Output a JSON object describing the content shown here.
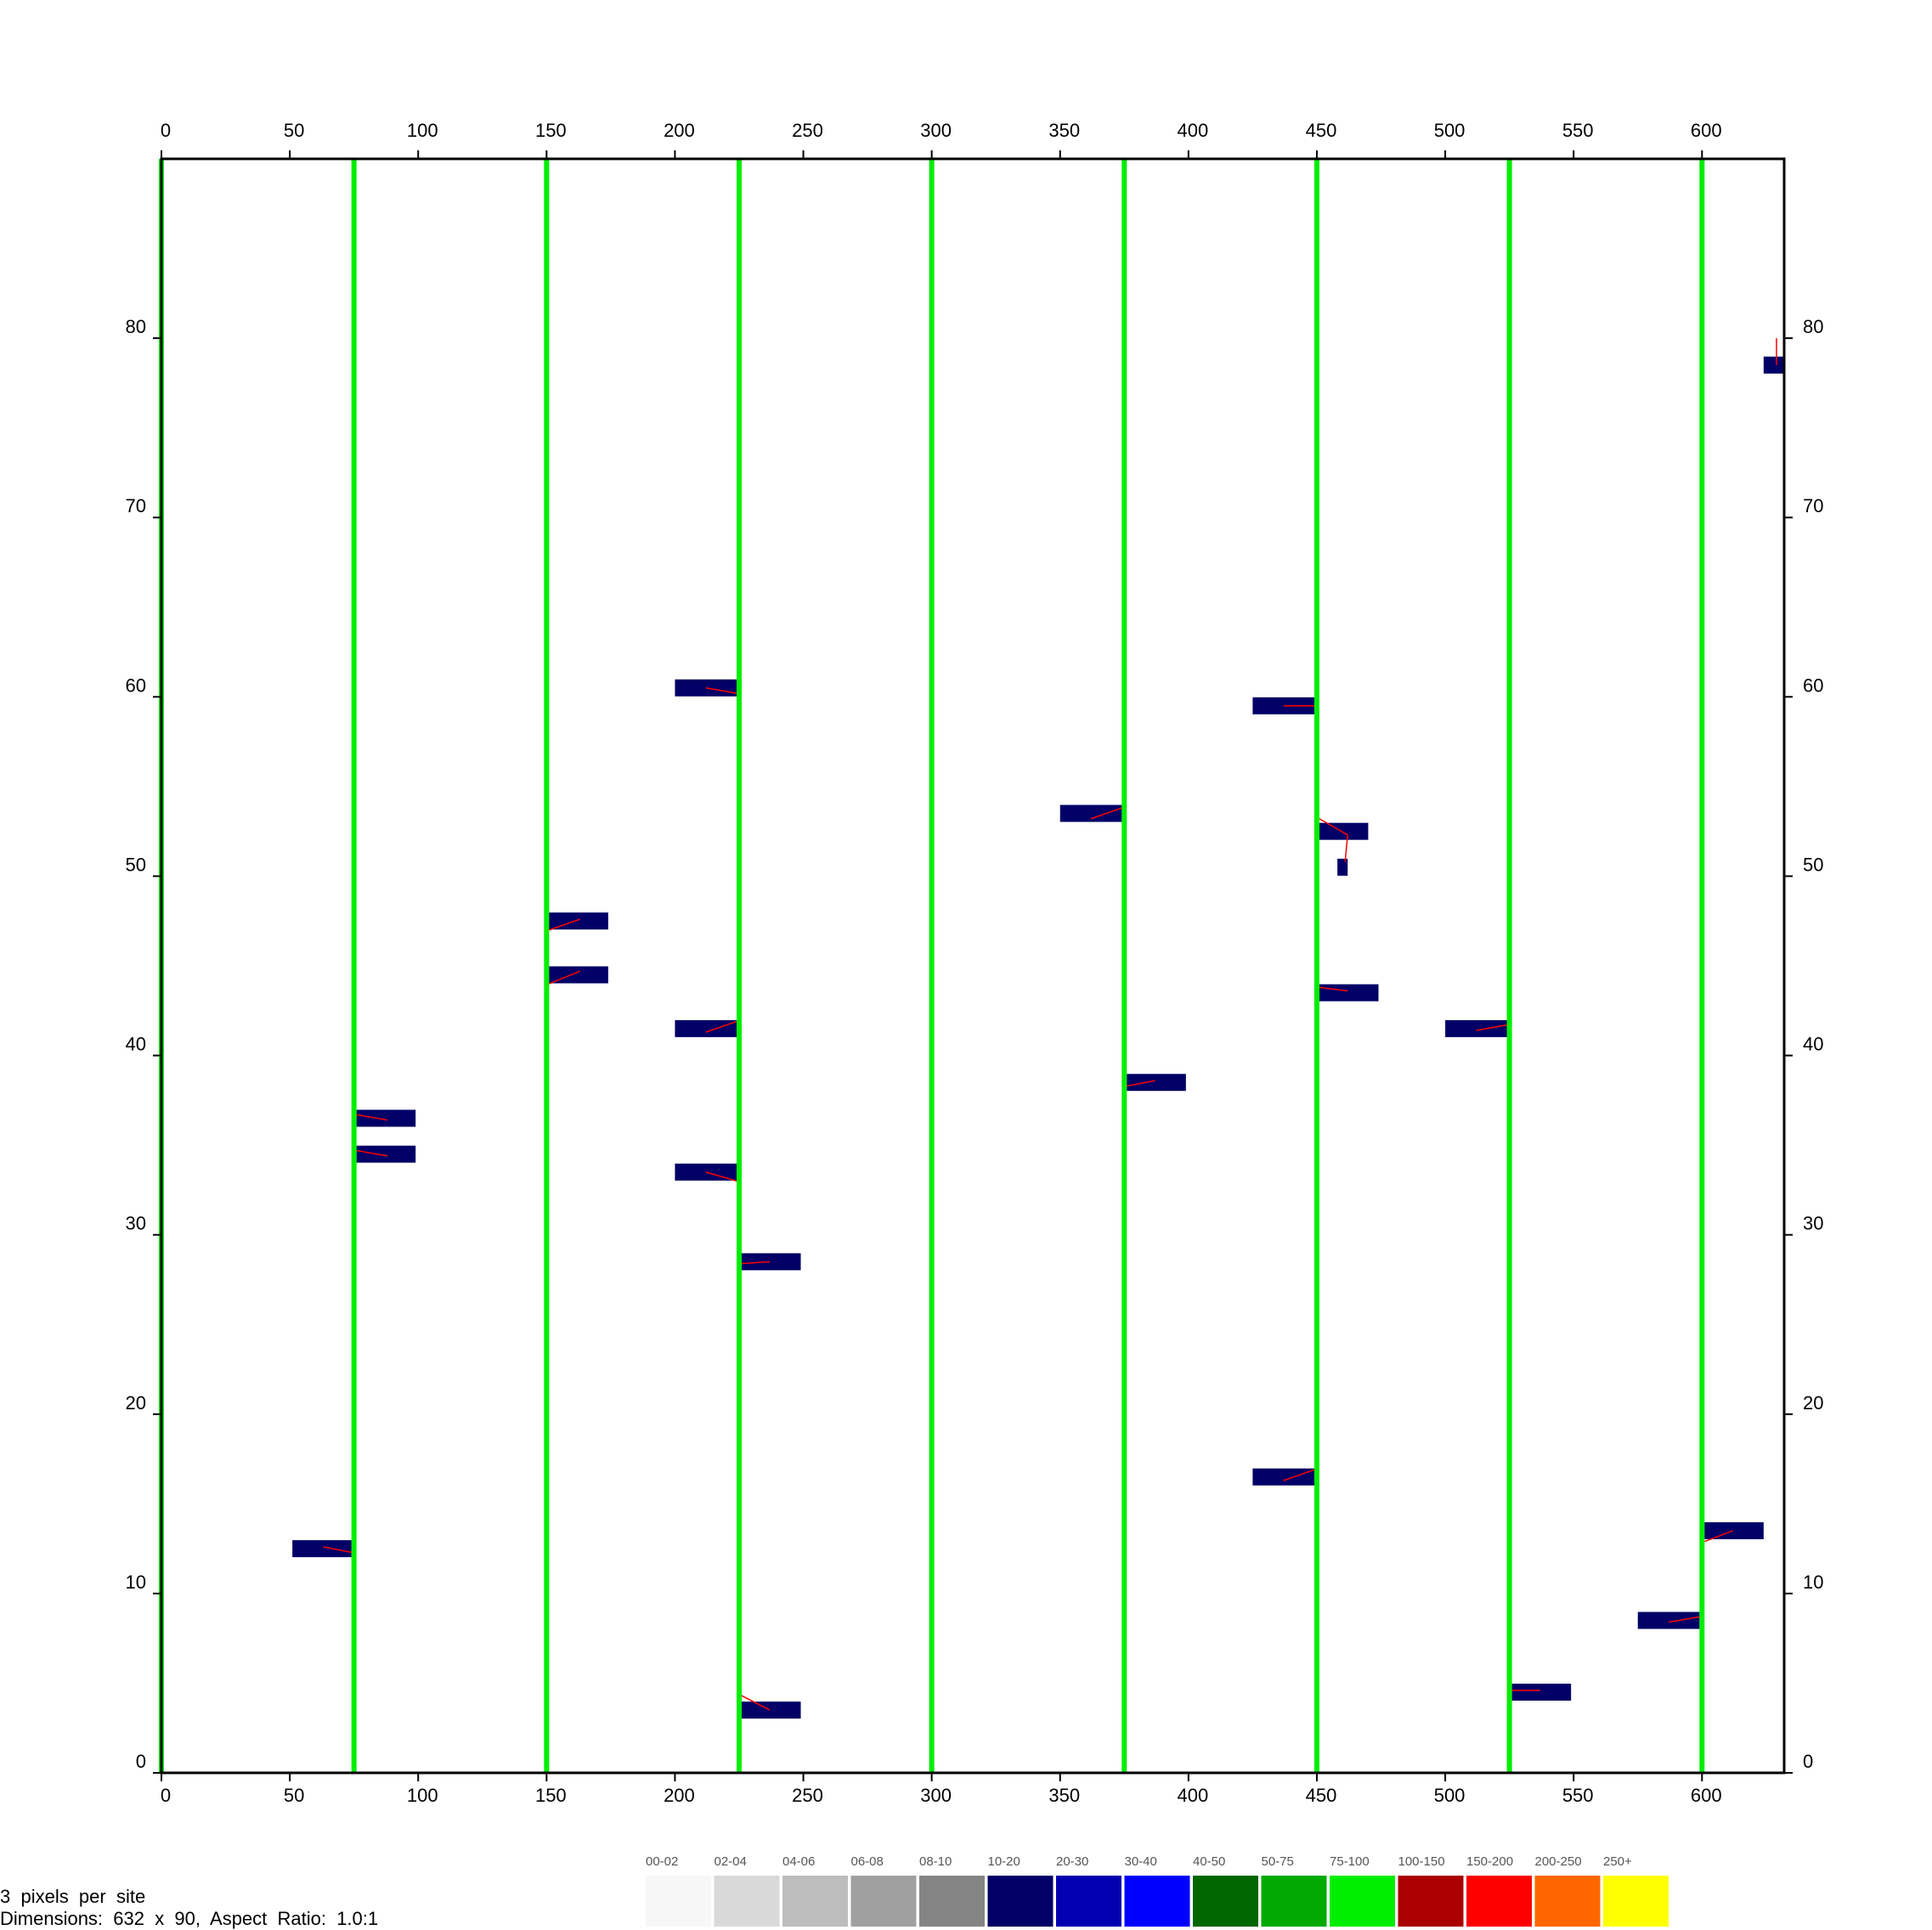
{
  "chart_data": {
    "type": "scatter",
    "title": "",
    "xlabel": "",
    "ylabel": "",
    "xlim": [
      0,
      632
    ],
    "ylim": [
      0,
      90
    ],
    "x_ticks": [
      0,
      50,
      100,
      150,
      200,
      250,
      300,
      350,
      400,
      450,
      500,
      550,
      600
    ],
    "y_ticks": [
      0,
      10,
      20,
      30,
      40,
      50,
      60,
      70,
      80
    ],
    "grid": false,
    "vertical_lines": {
      "color": "#00ee00",
      "x": [
        0,
        75,
        150,
        225,
        300,
        375,
        450,
        525,
        600
      ]
    },
    "blocks": {
      "color": "#000066",
      "link_color": "#ff0000",
      "items": [
        {
          "x1": 624,
          "x2": 632,
          "y": 78.5,
          "link": [
            [
              629,
              80
            ],
            [
              629,
              78.5
            ]
          ]
        },
        {
          "x1": 200,
          "x2": 224,
          "y": 60.5,
          "link": [
            [
              212,
              60.5
            ],
            [
              224,
              60.2
            ]
          ]
        },
        {
          "x1": 425,
          "x2": 449,
          "y": 59.5,
          "link": [
            [
              437,
              59.5
            ],
            [
              449,
              59.5
            ]
          ]
        },
        {
          "x1": 350,
          "x2": 374,
          "y": 53.5,
          "link": [
            [
              362,
              53.2
            ],
            [
              374,
              53.8
            ]
          ]
        },
        {
          "x1": 451,
          "x2": 470,
          "y": 52.5,
          "link": [
            [
              451,
              53.2
            ],
            [
              462,
              52.3
            ]
          ]
        },
        {
          "x1": 458,
          "x2": 462,
          "y": 50.5,
          "link": [
            [
              462,
              52.3
            ],
            [
              461,
              50.8
            ]
          ]
        },
        {
          "x1": 151,
          "x2": 174,
          "y": 47.5,
          "link": [
            [
              151,
              47
            ],
            [
              163,
              47.6
            ]
          ]
        },
        {
          "x1": 151,
          "x2": 174,
          "y": 44.5,
          "link": [
            [
              151,
              44
            ],
            [
              163,
              44.7
            ]
          ]
        },
        {
          "x1": 451,
          "x2": 474,
          "y": 43.5,
          "link": [
            [
              451,
              43.8
            ],
            [
              462,
              43.6
            ]
          ]
        },
        {
          "x1": 200,
          "x2": 224,
          "y": 41.5,
          "link": [
            [
              212,
              41.3
            ],
            [
              224,
              41.9
            ]
          ]
        },
        {
          "x1": 500,
          "x2": 524,
          "y": 41.5,
          "link": [
            [
              512,
              41.4
            ],
            [
              524,
              41.7
            ]
          ]
        },
        {
          "x1": 376,
          "x2": 399,
          "y": 38.5,
          "link": [
            [
              376,
              38.3
            ],
            [
              387,
              38.6
            ]
          ]
        },
        {
          "x1": 76,
          "x2": 99,
          "y": 36.5,
          "link": [
            [
              76,
              36.7
            ],
            [
              88,
              36.4
            ]
          ]
        },
        {
          "x1": 76,
          "x2": 99,
          "y": 34.5,
          "link": [
            [
              76,
              34.7
            ],
            [
              88,
              34.4
            ]
          ]
        },
        {
          "x1": 200,
          "x2": 224,
          "y": 33.5,
          "link": [
            [
              212,
              33.5
            ],
            [
              224,
              33
            ]
          ]
        },
        {
          "x1": 226,
          "x2": 249,
          "y": 28.5,
          "link": [
            [
              226,
              28.4
            ],
            [
              237,
              28.5
            ]
          ]
        },
        {
          "x1": 425,
          "x2": 449,
          "y": 16.5,
          "link": [
            [
              437,
              16.3
            ],
            [
              449,
              16.9
            ]
          ]
        },
        {
          "x1": 601,
          "x2": 624,
          "y": 13.5,
          "link": [
            [
              601,
              12.9
            ],
            [
              612,
              13.5
            ]
          ]
        },
        {
          "x1": 51,
          "x2": 74,
          "y": 12.5,
          "link": [
            [
              63,
              12.6
            ],
            [
              74,
              12.3
            ]
          ]
        },
        {
          "x1": 575,
          "x2": 599,
          "y": 8.5,
          "link": [
            [
              587,
              8.4
            ],
            [
              599,
              8.7
            ]
          ]
        },
        {
          "x1": 526,
          "x2": 549,
          "y": 4.5,
          "link": [
            [
              526,
              4.6
            ],
            [
              537,
              4.6
            ]
          ]
        },
        {
          "x1": 226,
          "x2": 249,
          "y": 3.5,
          "link": [
            [
              226,
              4.3
            ],
            [
              237,
              3.5
            ]
          ]
        }
      ]
    }
  },
  "legend": {
    "items": [
      {
        "label": "00-02",
        "color": "#f7f7f7"
      },
      {
        "label": "02-04",
        "color": "#d9d9d9"
      },
      {
        "label": "04-06",
        "color": "#bdbdbd"
      },
      {
        "label": "06-08",
        "color": "#a0a0a0"
      },
      {
        "label": "08-10",
        "color": "#848484"
      },
      {
        "label": "10-20",
        "color": "#000066"
      },
      {
        "label": "20-30",
        "color": "#0000b0"
      },
      {
        "label": "30-40",
        "color": "#0000ff"
      },
      {
        "label": "40-50",
        "color": "#006600"
      },
      {
        "label": "50-75",
        "color": "#00aa00"
      },
      {
        "label": "75-100",
        "color": "#00ee00"
      },
      {
        "label": "100-150",
        "color": "#aa0000"
      },
      {
        "label": "150-200",
        "color": "#ff0000"
      },
      {
        "label": "200-250",
        "color": "#ff6600"
      },
      {
        "label": "250+",
        "color": "#ffff00"
      }
    ]
  },
  "info": {
    "line1": "3  pixels  per  site",
    "line2": "Dimensions:  632  x  90,  Aspect  Ratio:  1.0:1"
  }
}
